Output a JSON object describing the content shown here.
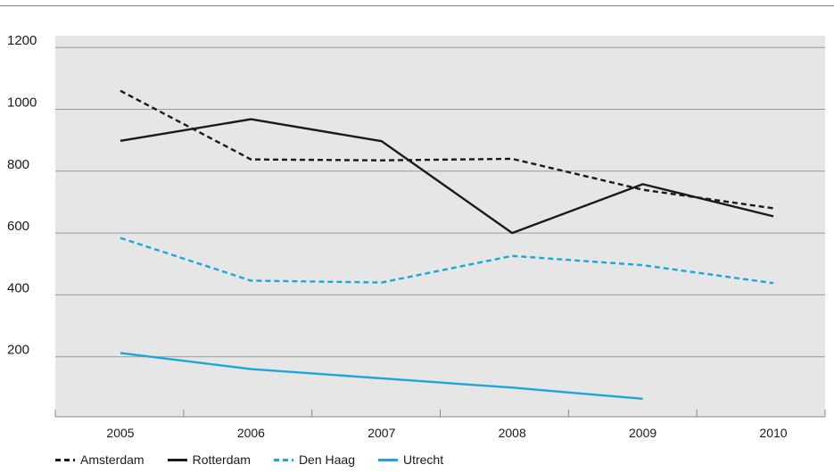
{
  "chart_data": {
    "type": "line",
    "title": "",
    "xlabel": "",
    "ylabel": "",
    "categories": [
      "2005",
      "2006",
      "2007",
      "2008",
      "2009",
      "2010"
    ],
    "y_ticks": [
      "200",
      "400",
      "600",
      "800",
      "1000",
      "1200"
    ],
    "ylim": [
      0,
      1200
    ],
    "grid": true,
    "legend_position": "bottom",
    "plot_background": "#e6e6e6",
    "series": [
      {
        "name": "Amsterdam",
        "values": [
          1060,
          838,
          835,
          840,
          740,
          680
        ],
        "color": "#1a1a1a",
        "dashed": true
      },
      {
        "name": "Rotterdam",
        "values": [
          898,
          968,
          897,
          600,
          758,
          654
        ],
        "color": "#1a1a1a",
        "dashed": false
      },
      {
        "name": "Den Haag",
        "values": [
          584,
          446,
          440,
          526,
          496,
          438
        ],
        "color": "#1aa7d9",
        "dashed": true
      },
      {
        "name": "Utrecht",
        "values": [
          212,
          160,
          130,
          100,
          64,
          null
        ],
        "color": "#1aa7d9",
        "dashed": false
      }
    ]
  }
}
